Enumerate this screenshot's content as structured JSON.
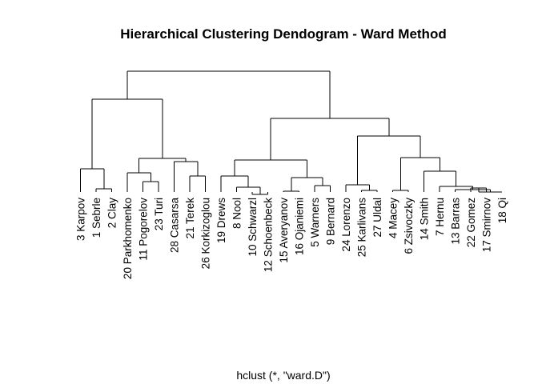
{
  "title": "Hierarchical Clustering Dendogram - Ward Method",
  "subtitle": "hclust (*, \"ward.D\")",
  "leaves": [
    "3 Karpov",
    "1 Sebrle",
    "2 Clay",
    "20 Parkhomenko",
    "11 Pogorelov",
    "23 Turi",
    "28 Casarsa",
    "21 Terek",
    "26 Korkizoglou",
    "19 Drews",
    "8 Nool",
    "10 Schwarzl",
    "12 Schoenbeck",
    "15 Averyanov",
    "16 Ojaniemi",
    "5 Warners",
    "9 Bernard",
    "24 Lorenzo",
    "25 Karlivans",
    "27 Uldal",
    "4 Macey",
    "6 Zsivoczky",
    "14 Smith",
    "7 Hernu",
    "13 Barras",
    "22 Gomez",
    "17 Smirnov",
    "18 Qi"
  ]
}
